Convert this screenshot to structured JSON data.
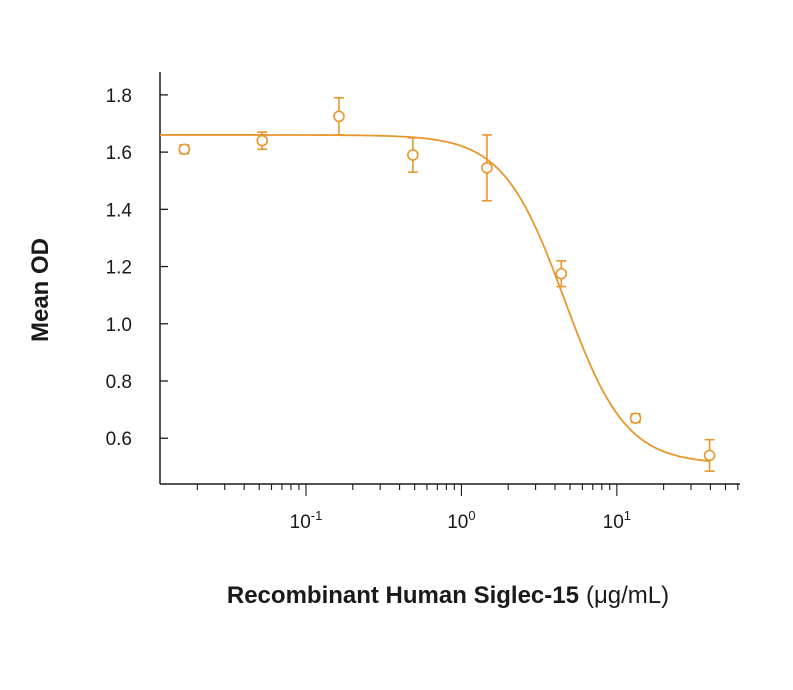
{
  "chart_data": {
    "type": "scatter",
    "xlabel": "Recombinant Human Siglec-15",
    "xlabel_unit": "(μg/mL)",
    "ylabel": "Mean OD",
    "x_scale": "log",
    "xlim": [
      0.0115,
      62
    ],
    "ylim": [
      0.44,
      1.88
    ],
    "y_ticks": [
      "0.6",
      "0.8",
      "1.0",
      "1.2",
      "1.4",
      "1.6",
      "1.8"
    ],
    "x_tick_labels": [
      {
        "base": "10",
        "exp": "-1",
        "value": 0.1
      },
      {
        "base": "10",
        "exp": "0",
        "value": 1
      },
      {
        "base": "10",
        "exp": "1",
        "value": 10
      }
    ],
    "grid": false,
    "color": "#e8962e",
    "points": [
      {
        "x": 0.0165,
        "y": 1.61,
        "err": 0.015
      },
      {
        "x": 0.0523,
        "y": 1.64,
        "err": 0.03
      },
      {
        "x": 0.163,
        "y": 1.725,
        "err": 0.065
      },
      {
        "x": 0.487,
        "y": 1.59,
        "err": 0.06
      },
      {
        "x": 1.46,
        "y": 1.545,
        "err": 0.115
      },
      {
        "x": 4.39,
        "y": 1.175,
        "err": 0.045
      },
      {
        "x": 13.2,
        "y": 0.67,
        "err": 0.015
      },
      {
        "x": 39.5,
        "y": 0.54,
        "err": 0.055
      }
    ],
    "fit_curve": {
      "model": "4PL",
      "top": 1.66,
      "bottom": 0.51,
      "ic50": 4.6,
      "hill": 2.2
    }
  }
}
